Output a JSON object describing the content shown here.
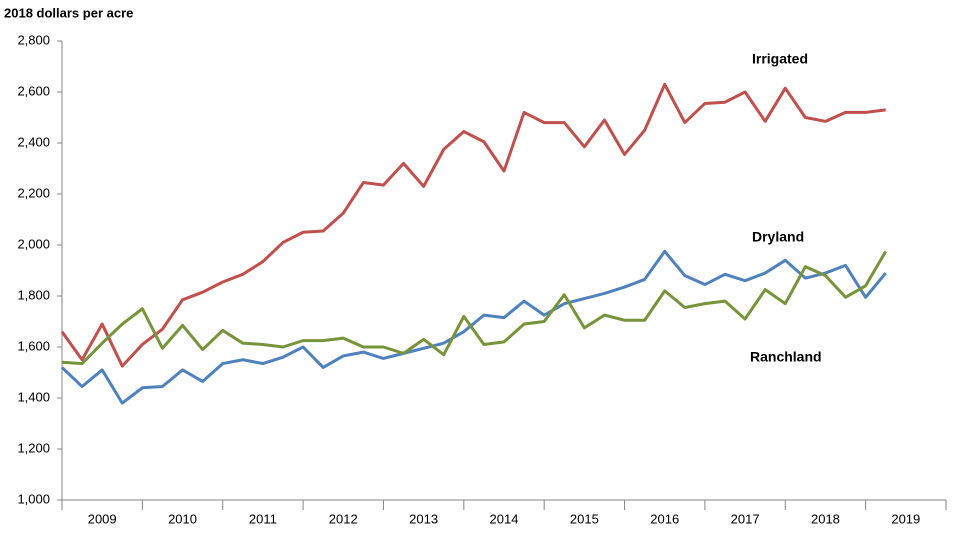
{
  "chart_data": {
    "type": "line",
    "y_label": "2018 dollars per acre",
    "x": [
      2009,
      2009.25,
      2009.5,
      2009.75,
      2010,
      2010.25,
      2010.5,
      2010.75,
      2011,
      2011.25,
      2011.5,
      2011.75,
      2012,
      2012.25,
      2012.5,
      2012.75,
      2013,
      2013.25,
      2013.5,
      2013.75,
      2014,
      2014.25,
      2014.5,
      2014.75,
      2015,
      2015.25,
      2015.5,
      2015.75,
      2016,
      2016.25,
      2016.5,
      2016.75,
      2017,
      2017.25,
      2017.5,
      2017.75,
      2018,
      2018.25,
      2018.5,
      2018.75,
      2019,
      2019.25
    ],
    "xlim": [
      2009,
      2020
    ],
    "xticks": [
      {
        "value": 2009.5,
        "label": "2009"
      },
      {
        "value": 2010.5,
        "label": "2010"
      },
      {
        "value": 2011.5,
        "label": "2011"
      },
      {
        "value": 2012.5,
        "label": "2012"
      },
      {
        "value": 2013.5,
        "label": "2013"
      },
      {
        "value": 2014.5,
        "label": "2014"
      },
      {
        "value": 2015.5,
        "label": "2015"
      },
      {
        "value": 2016.5,
        "label": "2016"
      },
      {
        "value": 2017.5,
        "label": "2017"
      },
      {
        "value": 2018.5,
        "label": "2018"
      },
      {
        "value": 2019.5,
        "label": "2019"
      }
    ],
    "ylim": [
      1000,
      2800
    ],
    "yticks": [
      {
        "value": 1000,
        "label": "1,000"
      },
      {
        "value": 1200,
        "label": "1,200"
      },
      {
        "value": 1400,
        "label": "1,400"
      },
      {
        "value": 1600,
        "label": "1,600"
      },
      {
        "value": 1800,
        "label": "1,800"
      },
      {
        "value": 2000,
        "label": "2,000"
      },
      {
        "value": 2200,
        "label": "2,200"
      },
      {
        "value": 2400,
        "label": "2,400"
      },
      {
        "value": 2600,
        "label": "2,600"
      },
      {
        "value": 2800,
        "label": "2,800"
      }
    ],
    "grid": false,
    "series": [
      {
        "name": "Irrigated",
        "color": "#c0504d",
        "values": [
          1660,
          1550,
          1690,
          1525,
          1610,
          1670,
          1785,
          1815,
          1855,
          1885,
          1935,
          2010,
          2050,
          2055,
          2125,
          2245,
          2235,
          2320,
          2230,
          2375,
          2445,
          2405,
          2290,
          2520,
          2480,
          2480,
          2385,
          2490,
          2355,
          2450,
          2630,
          2480,
          2555,
          2560,
          2600,
          2485,
          2615,
          2500,
          2485,
          2520,
          2520,
          2530
        ]
      },
      {
        "name": "Dryland",
        "color": "#4f81bd",
        "values": [
          1520,
          1445,
          1510,
          1380,
          1440,
          1445,
          1510,
          1465,
          1535,
          1550,
          1535,
          1560,
          1600,
          1520,
          1565,
          1580,
          1555,
          1575,
          1595,
          1615,
          1660,
          1725,
          1715,
          1780,
          1725,
          1770,
          1790,
          1810,
          1835,
          1865,
          1975,
          1880,
          1845,
          1885,
          1860,
          1890,
          1940,
          1870,
          1890,
          1920,
          1795,
          1890
        ]
      },
      {
        "name": "Ranchland",
        "color": "#77933c",
        "values": [
          1540,
          1535,
          1615,
          1690,
          1750,
          1595,
          1685,
          1590,
          1665,
          1615,
          1610,
          1600,
          1625,
          1625,
          1635,
          1600,
          1600,
          1575,
          1630,
          1570,
          1720,
          1610,
          1620,
          1690,
          1700,
          1805,
          1675,
          1725,
          1705,
          1705,
          1820,
          1755,
          1770,
          1780,
          1710,
          1825,
          1770,
          1915,
          1880,
          1795,
          1840,
          1975
        ]
      }
    ]
  }
}
